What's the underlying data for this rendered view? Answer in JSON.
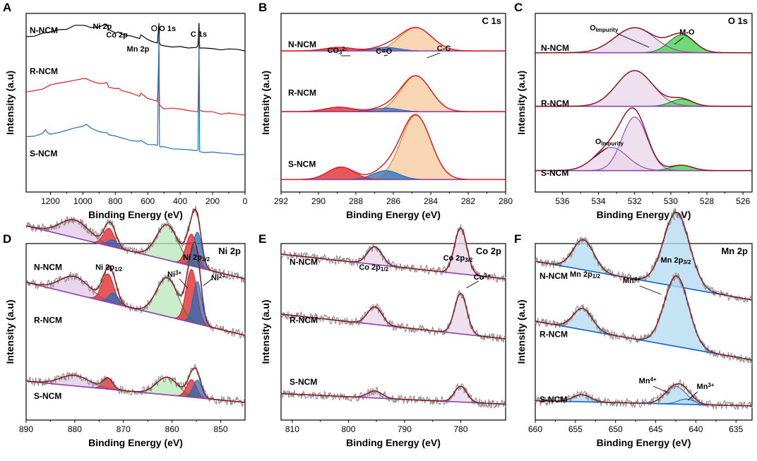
{
  "chart_data": [
    {
      "panel": "A",
      "type": "line",
      "title": "",
      "xlabel": "Binding Energy (eV)",
      "ylabel": "Intensity (a.u)",
      "xlim": [
        1350,
        0
      ],
      "xticks": [
        1200,
        1000,
        800,
        600,
        400,
        200,
        0
      ],
      "series": [
        {
          "name": "N-NCM",
          "color": "#000000",
          "x": [
            1350,
            1300,
            1250,
            1200,
            1150,
            1100,
            1050,
            1000,
            980,
            950,
            900,
            870,
            854,
            840,
            800,
            780,
            760,
            700,
            650,
            642,
            600,
            560,
            540,
            531,
            528,
            520,
            500,
            450,
            400,
            350,
            300,
            290,
            284,
            280,
            250,
            200,
            150,
            100,
            50,
            0
          ],
          "y": [
            0.87,
            0.875,
            0.885,
            0.895,
            0.905,
            0.915,
            0.93,
            0.935,
            0.935,
            0.925,
            0.92,
            0.93,
            0.94,
            0.91,
            0.89,
            0.895,
            0.88,
            0.87,
            0.86,
            0.88,
            0.85,
            0.84,
            0.835,
            0.95,
            0.83,
            0.82,
            0.82,
            0.815,
            0.81,
            0.81,
            0.81,
            0.82,
            0.95,
            0.81,
            0.805,
            0.8,
            0.8,
            0.8,
            0.795,
            0.79
          ]
        },
        {
          "name": "R-NCM",
          "color": "#e02020",
          "x": [
            1350,
            1300,
            1250,
            1200,
            1150,
            1100,
            1050,
            1000,
            980,
            950,
            900,
            870,
            854,
            840,
            800,
            780,
            760,
            700,
            650,
            642,
            600,
            560,
            540,
            531,
            528,
            520,
            500,
            450,
            400,
            350,
            300,
            290,
            284,
            280,
            250,
            200,
            150,
            100,
            50,
            0
          ],
          "y": [
            0.56,
            0.57,
            0.58,
            0.6,
            0.61,
            0.615,
            0.625,
            0.63,
            0.63,
            0.62,
            0.605,
            0.605,
            0.615,
            0.59,
            0.575,
            0.58,
            0.565,
            0.55,
            0.535,
            0.555,
            0.525,
            0.515,
            0.505,
            0.78,
            0.49,
            0.48,
            0.47,
            0.465,
            0.46,
            0.455,
            0.45,
            0.455,
            0.76,
            0.455,
            0.45,
            0.445,
            0.44,
            0.44,
            0.435,
            0.43
          ]
        },
        {
          "name": "S-NCM",
          "color": "#1f6fbf",
          "x": [
            1350,
            1300,
            1250,
            1230,
            1220,
            1200,
            1150,
            1100,
            1050,
            1000,
            980,
            950,
            900,
            870,
            854,
            840,
            800,
            780,
            760,
            700,
            650,
            642,
            600,
            560,
            540,
            531,
            528,
            520,
            500,
            450,
            400,
            350,
            300,
            290,
            284,
            280,
            250,
            200,
            150,
            100,
            50,
            0
          ],
          "y": [
            0.31,
            0.315,
            0.33,
            0.35,
            0.33,
            0.325,
            0.335,
            0.345,
            0.355,
            0.37,
            0.38,
            0.355,
            0.34,
            0.33,
            0.335,
            0.32,
            0.31,
            0.305,
            0.3,
            0.29,
            0.28,
            0.29,
            0.27,
            0.265,
            0.26,
            0.88,
            0.255,
            0.25,
            0.25,
            0.245,
            0.24,
            0.235,
            0.235,
            0.24,
            0.88,
            0.23,
            0.225,
            0.22,
            0.22,
            0.215,
            0.21,
            0.21
          ]
        }
      ],
      "annotations": [
        "Ni 2p",
        "Co 2p",
        "Mn 2p",
        "O 1s",
        "C 1s"
      ]
    },
    {
      "panel": "B",
      "type": "area",
      "title": "C 1s",
      "xlabel": "Binding Energy (eV)",
      "ylabel": "Intensity (a.u)",
      "xlim": [
        292,
        280
      ],
      "xticks": [
        292,
        290,
        288,
        286,
        284,
        282,
        280
      ],
      "series": [
        {
          "name": "N-NCM",
          "offset": 0.79,
          "peaks": [
            {
              "label": "C-C",
              "center": 284.8,
              "height": 0.13,
              "width": 0.85,
              "color": "#f5c89a"
            },
            {
              "label": "C=O",
              "center": 286.4,
              "height": 0.02,
              "width": 0.7,
              "color": "#1f6fbf"
            },
            {
              "label": "CO3 2-",
              "center": 288.9,
              "height": 0.02,
              "width": 0.75,
              "color": "#e02020"
            }
          ]
        },
        {
          "name": "R-NCM",
          "offset": 0.45,
          "peaks": [
            {
              "label": "C-C",
              "center": 284.8,
              "height": 0.2,
              "width": 0.8,
              "color": "#f5c89a"
            },
            {
              "label": "C=O",
              "center": 286.4,
              "height": 0.02,
              "width": 0.7,
              "color": "#1f6fbf"
            },
            {
              "label": "CO3 2-",
              "center": 288.9,
              "height": 0.025,
              "width": 0.75,
              "color": "#e02020"
            }
          ]
        },
        {
          "name": "S-NCM",
          "offset": 0.07,
          "peaks": [
            {
              "label": "C-C",
              "center": 284.8,
              "height": 0.36,
              "width": 0.8,
              "color": "#f5c89a"
            },
            {
              "label": "C=O",
              "center": 286.4,
              "height": 0.05,
              "width": 0.7,
              "color": "#1f6fbf"
            },
            {
              "label": "CO3 2-",
              "center": 288.8,
              "height": 0.07,
              "width": 0.7,
              "color": "#e02020"
            }
          ]
        }
      ],
      "annotations": [
        "CO3 2-",
        "C=O",
        "C-C"
      ]
    },
    {
      "panel": "C",
      "type": "area",
      "title": "O 1s",
      "xlabel": "Binding Energy (eV)",
      "ylabel": "Intensity (a.u)",
      "xlim": [
        537.5,
        525.5
      ],
      "xticks": [
        536,
        534,
        532,
        530,
        528,
        526
      ],
      "series": [
        {
          "name": "N-NCM",
          "offset": 0.78,
          "peaks": [
            {
              "label": "O Impurity",
              "center": 532.0,
              "height": 0.14,
              "width": 1.1,
              "color": "#e8d6ea"
            },
            {
              "label": "M-O",
              "center": 529.4,
              "height": 0.1,
              "width": 0.7,
              "color": "#3ecf4a"
            }
          ]
        },
        {
          "name": "R-NCM",
          "offset": 0.48,
          "peaks": [
            {
              "label": "O Impurity",
              "center": 532.0,
              "height": 0.2,
              "width": 1.0,
              "color": "#e8d6ea"
            },
            {
              "label": "M-O",
              "center": 529.4,
              "height": 0.04,
              "width": 0.6,
              "color": "#3ecf4a"
            }
          ]
        },
        {
          "name": "S-NCM",
          "offset": 0.12,
          "peaks": [
            {
              "label": "O Impurity",
              "center": 533.3,
              "height": 0.13,
              "width": 0.9,
              "color": "#e8d6ea"
            },
            {
              "label": "O Impurity (sharp)",
              "center": 532.0,
              "height": 0.3,
              "width": 0.7,
              "color": "#e8d6ea"
            },
            {
              "label": "M-O",
              "center": 529.4,
              "height": 0.03,
              "width": 0.6,
              "color": "#3ecf4a"
            }
          ]
        }
      ],
      "annotations": [
        "O Impurity",
        "M-O"
      ]
    },
    {
      "panel": "D",
      "type": "area",
      "title": "Ni 2p",
      "xlabel": "Binding Energy (eV)",
      "ylabel": "Intensity (a.u)",
      "xlim": [
        890,
        845
      ],
      "xticks": [
        890,
        880,
        870,
        860,
        850
      ],
      "series": [
        {
          "name": "N-NCM",
          "offset": 0.8,
          "slope": 0.3,
          "peaks": [
            {
              "label": "satellite",
              "center": 880.0,
              "height": 0.1,
              "width": 3.0,
              "color": "#e0c8e6"
            },
            {
              "label": "Ni 2p1/2 Ni2+",
              "center": 873.0,
              "height": 0.1,
              "width": 1.1,
              "color": "#e02020"
            },
            {
              "label": "Ni 2p1/2 Ni3+",
              "center": 872.2,
              "height": 0.04,
              "width": 1.0,
              "color": "#1f6fbf"
            },
            {
              "label": "satellite",
              "center": 861.0,
              "height": 0.2,
              "width": 2.2,
              "color": "#b8e8b8"
            },
            {
              "label": "Ni3+",
              "center": 856.0,
              "height": 0.18,
              "width": 1.1,
              "color": "#e02020"
            },
            {
              "label": "Ni2+",
              "center": 854.8,
              "height": 0.2,
              "width": 0.9,
              "color": "#1f6fbf"
            }
          ]
        },
        {
          "name": "R-NCM",
          "offset": 0.48,
          "slope": 0.3,
          "peaks": [
            {
              "label": "satellite",
              "center": 880.0,
              "height": 0.1,
              "width": 3.0,
              "color": "#e0c8e6"
            },
            {
              "label": "Ni 2p1/2 Ni2+",
              "center": 873.2,
              "height": 0.16,
              "width": 1.2,
              "color": "#e02020"
            },
            {
              "label": "Ni 2p1/2 Ni3+",
              "center": 872.0,
              "height": 0.06,
              "width": 1.0,
              "color": "#1f6fbf"
            },
            {
              "label": "satellite",
              "center": 861.0,
              "height": 0.22,
              "width": 2.2,
              "color": "#b8e8b8"
            },
            {
              "label": "Ni3+",
              "center": 856.0,
              "height": 0.3,
              "width": 1.1,
              "color": "#e02020"
            },
            {
              "label": "Ni2+",
              "center": 854.8,
              "height": 0.24,
              "width": 0.9,
              "color": "#1f6fbf"
            }
          ]
        },
        {
          "name": "S-NCM",
          "offset": 0.1,
          "slope": 0.12,
          "peaks": [
            {
              "label": "satellite",
              "center": 880.0,
              "height": 0.06,
              "width": 3.0,
              "color": "#e0c8e6"
            },
            {
              "label": "Ni 2p1/2 Ni2+",
              "center": 873.2,
              "height": 0.06,
              "width": 1.0,
              "color": "#e02020"
            },
            {
              "label": "satellite",
              "center": 861.0,
              "height": 0.1,
              "width": 2.2,
              "color": "#b8e8b8"
            },
            {
              "label": "Ni3+",
              "center": 856.0,
              "height": 0.1,
              "width": 1.0,
              "color": "#e02020"
            },
            {
              "label": "Ni2+",
              "center": 854.8,
              "height": 0.1,
              "width": 0.9,
              "color": "#1f6fbf"
            }
          ]
        }
      ],
      "annotations": [
        "Ni 2p1/2",
        "Ni 2p3/2",
        "Ni3+",
        "Ni2+"
      ]
    },
    {
      "panel": "E",
      "type": "area",
      "title": "Co 2p",
      "xlabel": "Binding Energy (eV)",
      "ylabel": "Intensity (a.u)",
      "xlim": [
        812,
        772
      ],
      "xticks": [
        810,
        800,
        790,
        780
      ],
      "series": [
        {
          "name": "N-NCM",
          "offset": 0.8,
          "slope": 0.14,
          "peaks": [
            {
              "label": "Co 2p1/2",
              "center": 795.3,
              "height": 0.1,
              "width": 1.3,
              "color": "#e8d6ea"
            },
            {
              "label": "Co3+",
              "center": 780.0,
              "height": 0.26,
              "width": 1.1,
              "color": "#e8d6ea"
            }
          ]
        },
        {
          "name": "R-NCM",
          "offset": 0.46,
          "slope": 0.14,
          "peaks": [
            {
              "label": "Co 2p1/2",
              "center": 795.3,
              "height": 0.1,
              "width": 1.3,
              "color": "#e8d6ea"
            },
            {
              "label": "Co3+",
              "center": 780.0,
              "height": 0.23,
              "width": 1.1,
              "color": "#e8d6ea"
            }
          ]
        },
        {
          "name": "S-NCM",
          "offset": 0.09,
          "slope": 0.06,
          "peaks": [
            {
              "label": "Co 2p1/2",
              "center": 795.3,
              "height": 0.04,
              "width": 1.3,
              "color": "#e8d6ea"
            },
            {
              "label": "Co3+",
              "center": 780.0,
              "height": 0.09,
              "width": 1.1,
              "color": "#e8d6ea"
            }
          ]
        }
      ],
      "annotations": [
        "Co 2p1/2",
        "Co 2p3/2",
        "Co3+"
      ]
    },
    {
      "panel": "F",
      "type": "area",
      "title": "Mn 2p",
      "xlabel": "Binding Energy (eV)",
      "ylabel": "Intensity (a.u)",
      "xlim": [
        660,
        633
      ],
      "xticks": [
        660,
        655,
        650,
        645,
        640,
        635
      ],
      "series": [
        {
          "name": "N-NCM",
          "offset": 0.68,
          "slope": 0.22,
          "peaks": [
            {
              "label": "Mn 2p1/2 Mn4+",
              "center": 654.0,
              "height": 0.17,
              "width": 1.3,
              "color": "#b0daf0"
            },
            {
              "label": "Mn4+",
              "center": 642.4,
              "height": 0.42,
              "width": 1.6,
              "color": "#b0daf0"
            }
          ]
        },
        {
          "name": "R-NCM",
          "offset": 0.34,
          "slope": 0.22,
          "peaks": [
            {
              "label": "Mn 2p1/2 Mn4+",
              "center": 654.1,
              "height": 0.12,
              "width": 1.2,
              "color": "#b0daf0"
            },
            {
              "label": "Mn4+",
              "center": 642.4,
              "height": 0.4,
              "width": 1.5,
              "color": "#b0daf0"
            }
          ]
        },
        {
          "name": "S-NCM",
          "offset": 0.08,
          "slope": 0.03,
          "peaks": [
            {
              "label": "Mn 2p1/2 Mn4+",
              "center": 654.2,
              "height": 0.04,
              "width": 1.1,
              "color": "#b0daf0"
            },
            {
              "label": "Mn4+",
              "center": 642.5,
              "height": 0.1,
              "width": 1.3,
              "color": "#b0daf0"
            },
            {
              "label": "Mn3+",
              "center": 641.2,
              "height": 0.03,
              "width": 1.0,
              "color": "#b0daf0"
            }
          ]
        }
      ],
      "annotations": [
        "Mn 2p1/2",
        "Mn 2p3/2",
        "Mn4+",
        "Mn4+",
        "Mn3+"
      ]
    }
  ],
  "figure": {
    "panel_letters": [
      "A",
      "B",
      "C",
      "D",
      "E",
      "F"
    ],
    "sample_labels": [
      "N-NCM",
      "R-NCM",
      "S-NCM"
    ],
    "axis_label_x": "Binding Energy (eV)",
    "axis_label_y": "Intensity (a.u)",
    "text": {
      "A": {
        "ni": "Ni 2p",
        "co": "Co 2p",
        "mn": "Mn 2p",
        "o": "O 1s",
        "c": "C 1s"
      },
      "B": {
        "title": "C 1s",
        "co3": "CO",
        "co3_sub": "3",
        "co3_sup": "2-",
        "ceo": "C=O",
        "cc": "C-C"
      },
      "C": {
        "title": "O 1s",
        "o_imp": "O",
        "o_imp_sub": "Impurity",
        "mo": "M-O"
      },
      "D": {
        "title": "Ni 2p",
        "half": "Ni 2p",
        "half_sub": "1/2",
        "three": "Ni 2p",
        "three_sub": "3/2",
        "ni3": "Ni",
        "ni3_sup": "3+",
        "ni2": "Ni",
        "ni2_sup": "2+"
      },
      "E": {
        "title": "Co 2p",
        "half": "Co 2p",
        "half_sub": "1/2",
        "three": "Co 2p",
        "three_sub": "3/2",
        "co3": "Co",
        "co3_sup": "3+"
      },
      "F": {
        "title": "Mn 2p",
        "half": "Mn 2p",
        "half_sub": "1/2",
        "three": "Mn 2p",
        "three_sub": "3/2",
        "mn4": "Mn",
        "mn4_sup": "4+",
        "mn3": "Mn",
        "mn3_sup": "3+"
      }
    },
    "colors": {
      "fit_line": "#8b1a1a",
      "raw_line": "#8c8c8c",
      "baseline": "#8e44ad",
      "baseline_F": "#1565c0",
      "green_fit": "#2e7d32",
      "blue_fit": "#1f6fbf",
      "red_fit": "#e02020",
      "orange_fit": "#e07b20"
    }
  }
}
